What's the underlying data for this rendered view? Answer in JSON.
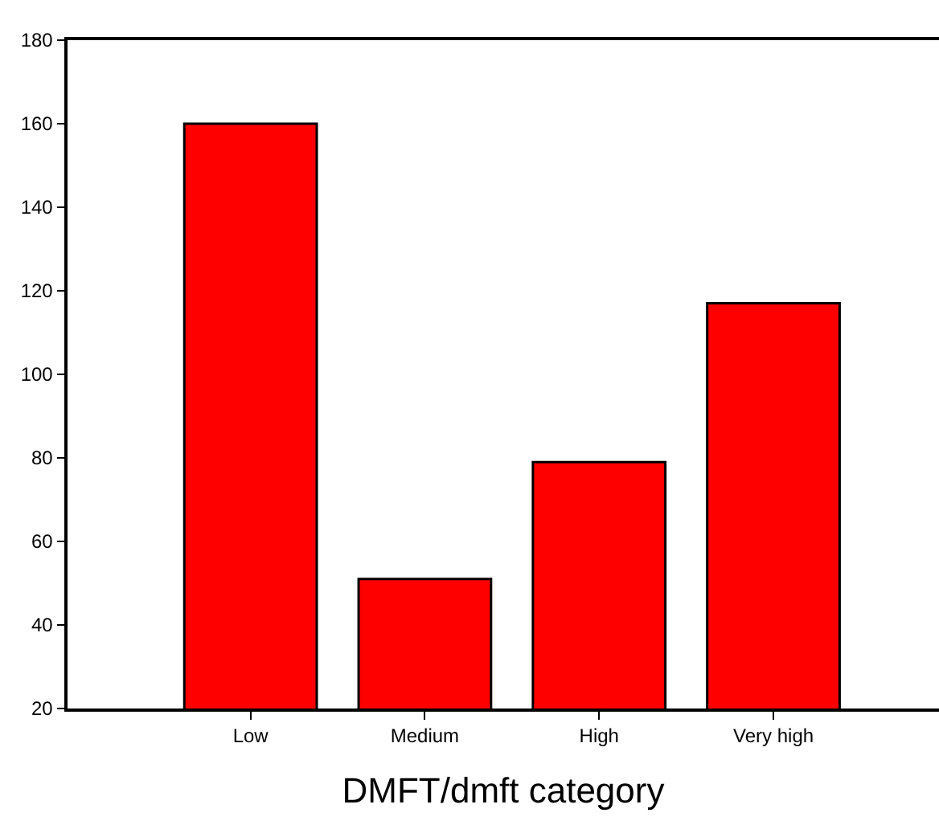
{
  "chart_data": {
    "type": "bar",
    "xlabel": "DMFT/dmft category",
    "categories": [
      "Low",
      "Medium",
      "High",
      "Very high"
    ],
    "values": [
      160,
      51,
      79,
      117
    ],
    "color": "#ff0000",
    "ylim": [
      20,
      180
    ],
    "yticks": [
      20,
      40,
      60,
      80,
      100,
      120,
      140,
      160,
      180
    ]
  }
}
